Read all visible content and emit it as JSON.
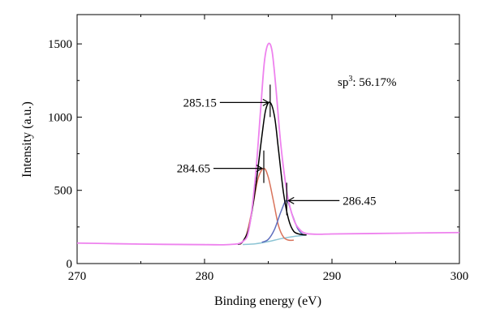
{
  "chart_data": {
    "type": "line",
    "xlabel": "Binding energy (eV)",
    "ylabel": "Intensity (a.u.)",
    "xlim": [
      270,
      300
    ],
    "ylim": [
      0,
      1700
    ],
    "x_ticks": [
      270,
      280,
      290,
      300
    ],
    "x_tick_labels": [
      "270",
      "280",
      "290",
      "300"
    ],
    "y_ticks": [
      0,
      500,
      1000,
      1500
    ],
    "y_tick_labels": [
      "0",
      "500",
      "1000",
      "1500"
    ],
    "grid": false,
    "annotation_sp3": {
      "prefix": "sp",
      "sup": "3",
      "suffix": ": 56.17%"
    },
    "peak_labels": [
      {
        "text": "285.15",
        "x": 285.15,
        "y": 1100
      },
      {
        "text": "284.65",
        "x": 284.65,
        "y": 650
      },
      {
        "text": "286.45",
        "x": 286.45,
        "y": 430
      }
    ],
    "series": [
      {
        "color": "#ee82ee",
        "x": [
          270,
          275,
          280,
          282,
          283,
          283.5,
          284,
          284.4,
          284.7,
          285,
          285.3,
          285.6,
          286,
          286.5,
          287,
          287.5,
          288,
          289,
          290,
          295,
          300
        ],
        "y": [
          140,
          133,
          129,
          130,
          150,
          240,
          600,
          1050,
          1380,
          1500,
          1450,
          1200,
          800,
          470,
          300,
          230,
          205,
          200,
          202,
          207,
          212
        ]
      },
      {
        "color": "#000000",
        "x": [
          282.6,
          283,
          283.5,
          284,
          284.5,
          284.8,
          285.15,
          285.5,
          285.8,
          286.2,
          286.6,
          287,
          287.5,
          288
        ],
        "y": [
          130,
          150,
          250,
          520,
          870,
          1050,
          1100,
          1000,
          780,
          480,
          300,
          220,
          200,
          195
        ]
      },
      {
        "color": "#d9735b",
        "x": [
          282.8,
          283.3,
          283.8,
          284.2,
          284.65,
          285,
          285.4,
          285.8,
          286.2,
          286.6,
          287
        ],
        "y": [
          130,
          200,
          400,
          580,
          650,
          590,
          430,
          260,
          180,
          160,
          160
        ]
      },
      {
        "color": "#5f6fbf",
        "x": [
          284.5,
          285,
          285.5,
          286,
          286.45,
          286.9,
          287.3,
          287.7,
          288
        ],
        "y": [
          145,
          165,
          235,
          355,
          430,
          330,
          240,
          200,
          195
        ]
      },
      {
        "color": "#8cc4d4",
        "x": [
          283,
          284,
          285,
          286,
          287,
          288
        ],
        "y": [
          130,
          135,
          150,
          170,
          185,
          195
        ]
      }
    ]
  }
}
